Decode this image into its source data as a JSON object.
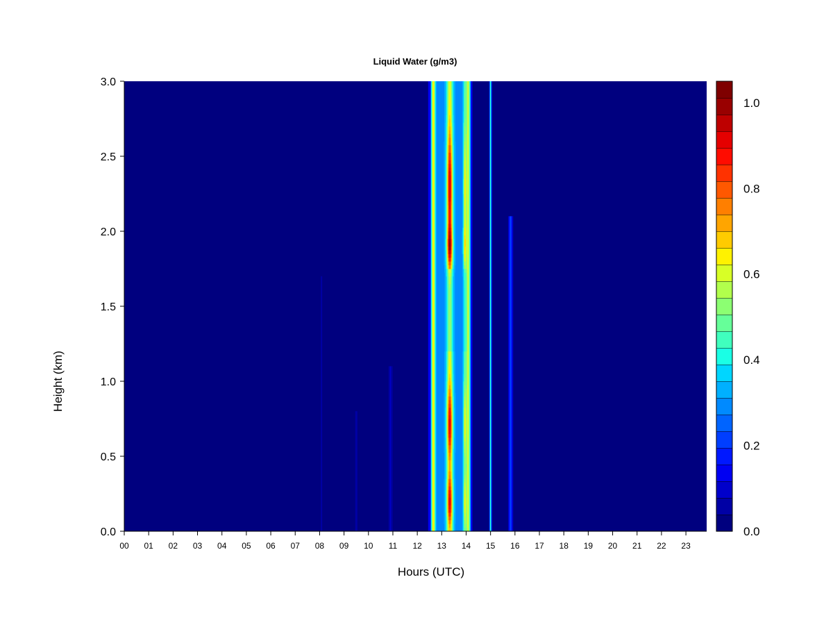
{
  "chart_data": {
    "type": "heatmap",
    "title": "Liquid Water (g/m3)",
    "xlabel": "Hours (UTC)",
    "ylabel": "Height (km)",
    "xlim": [
      0,
      23.85
    ],
    "ylim": [
      0,
      3.0
    ],
    "x_ticks": [
      "00",
      "01",
      "02",
      "03",
      "04",
      "05",
      "06",
      "07",
      "08",
      "09",
      "10",
      "11",
      "12",
      "13",
      "14",
      "15",
      "16",
      "17",
      "18",
      "19",
      "20",
      "21",
      "22",
      "23"
    ],
    "x_tick_values": [
      0,
      1,
      2,
      3,
      4,
      5,
      6,
      7,
      8,
      9,
      10,
      11,
      12,
      13,
      14,
      15,
      16,
      17,
      18,
      19,
      20,
      21,
      22,
      23
    ],
    "y_ticks": [
      "0.0",
      "0.5",
      "1.0",
      "1.5",
      "2.0",
      "2.5",
      "3.0"
    ],
    "y_tick_values": [
      0,
      0.5,
      1.0,
      1.5,
      2.0,
      2.5,
      3.0
    ],
    "colorbar": {
      "ticks": [
        "0.0",
        "0.2",
        "0.4",
        "0.6",
        "0.8",
        "1.0"
      ],
      "tick_values": [
        0,
        0.2,
        0.4,
        0.6,
        0.8,
        1.0
      ],
      "levels": [
        0,
        0.05,
        0.1,
        0.15,
        0.2,
        0.25,
        0.3,
        0.35,
        0.4,
        0.45,
        0.5,
        0.55,
        0.6,
        0.65,
        0.7,
        0.75,
        0.8,
        0.85,
        0.9,
        0.95,
        1.0,
        1.05
      ],
      "colors": [
        "#00007F",
        "#0000A5",
        "#0000CB",
        "#0000F2",
        "#0018FF",
        "#003EFF",
        "#0064FF",
        "#008AFF",
        "#00B0FF",
        "#00D6FF",
        "#1AFFE5",
        "#40FFBE",
        "#66FF99",
        "#8CFF72",
        "#B2FF4C",
        "#D8FF26",
        "#FFF200",
        "#FFCB00",
        "#FFA500",
        "#FF7F00",
        "#FF5800",
        "#FF3200",
        "#FF0C00",
        "#E50000",
        "#BE0000",
        "#990000",
        "#7F0000"
      ]
    },
    "peak_value": 1.02,
    "features": [
      {
        "hours": [
          12.55,
          14.15
        ],
        "range": [
          0.0,
          3.0
        ],
        "max_value": 1.02,
        "max_at_km": [
          0.2,
          0.7,
          1.9,
          2.3
        ]
      },
      {
        "hours": [
          14.95,
          15.05
        ],
        "range": [
          0.0,
          3.0
        ],
        "max_value": 0.45
      },
      {
        "hours": [
          15.7,
          16.0
        ],
        "range": [
          0.0,
          2.1
        ],
        "max_value": 0.25
      },
      {
        "hours": [
          8.0,
          11.0
        ],
        "range": [
          0.0,
          1.7
        ],
        "max_value": 0.08
      }
    ]
  }
}
